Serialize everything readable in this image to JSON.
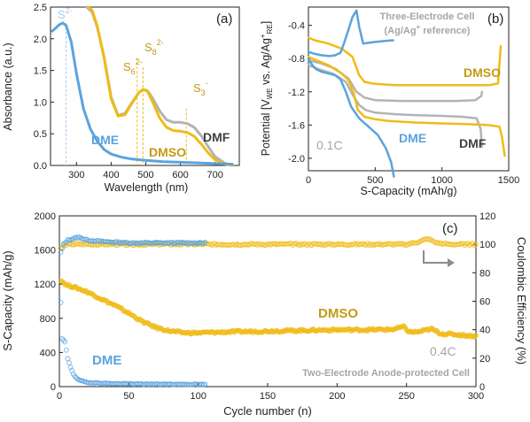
{
  "colors": {
    "dme": "#5aa3de",
    "dmso": "#f0bb17",
    "dmf": "#b3b3b3",
    "dmso_label": "#c49a12",
    "dmf_label": "#404040",
    "ce_arrow": "#8c8c8c",
    "note": "#a6a6a6"
  },
  "chart_data": [
    {
      "panel": "(a)",
      "type": "line",
      "xlabel": "Wavelength (nm)",
      "ylabel": "Absorbance (a.u.)",
      "xlim": [
        225,
        770
      ],
      "ylim": [
        0,
        2.5
      ],
      "xticks": [
        "300",
        "400",
        "500",
        "600",
        "700"
      ],
      "yticks": [
        "0.0",
        "0.5",
        "1.0",
        "1.5",
        "2.0",
        "2.5"
      ],
      "labels": {
        "dme": "DME",
        "dmso": "DMSO",
        "dmf": "DMF"
      },
      "species": [
        {
          "base": "S",
          "sup": "2-",
          "sub": "",
          "x": 270
        },
        {
          "base": "S",
          "sup": "2-",
          "sub": "6",
          "x": 475
        },
        {
          "base": "S",
          "sup": "2-",
          "sub": "8",
          "x": 492
        },
        {
          "base": "S",
          "sup": "-",
          "sub": "3",
          "x": 617
        }
      ],
      "series": [
        {
          "name": "DME",
          "x": [
            230,
            250,
            260,
            270,
            285,
            300,
            320,
            340,
            360,
            380,
            400,
            430,
            460,
            500,
            550,
            600,
            650,
            700,
            750
          ],
          "y": [
            2.12,
            2.22,
            2.25,
            2.21,
            1.95,
            1.45,
            0.9,
            0.58,
            0.38,
            0.25,
            0.18,
            0.13,
            0.1,
            0.08,
            0.06,
            0.05,
            0.04,
            0.03,
            0.02
          ]
        },
        {
          "name": "DMSO",
          "x": [
            335,
            345,
            360,
            380,
            400,
            420,
            440,
            460,
            480,
            492,
            505,
            520,
            540,
            560,
            580,
            600,
            620,
            640,
            660,
            680,
            700,
            730,
            750
          ],
          "y": [
            2.5,
            2.45,
            2.2,
            1.68,
            1.05,
            0.78,
            0.8,
            0.98,
            1.15,
            1.2,
            1.17,
            1.0,
            0.75,
            0.6,
            0.55,
            0.54,
            0.52,
            0.46,
            0.34,
            0.2,
            0.09,
            0.02,
            0.0
          ]
        },
        {
          "name": "DMF",
          "x": [
            330,
            345,
            360,
            380,
            400,
            420,
            440,
            460,
            480,
            492,
            505,
            520,
            540,
            560,
            580,
            600,
            620,
            640,
            660,
            680,
            700,
            730,
            750
          ],
          "y": [
            2.5,
            2.42,
            2.18,
            1.7,
            1.08,
            0.79,
            0.82,
            0.99,
            1.15,
            1.2,
            1.18,
            1.06,
            0.86,
            0.72,
            0.68,
            0.68,
            0.66,
            0.6,
            0.47,
            0.3,
            0.14,
            0.03,
            0.0
          ]
        }
      ]
    },
    {
      "panel": "(b)",
      "type": "line",
      "xlabel": "S-Capacity (mAh/g)",
      "ylabel_parts": [
        "Potential [V",
        "WE",
        " vs. Ag/Ag",
        "+",
        "RE",
        "]"
      ],
      "xlim": [
        0,
        1500
      ],
      "ylim": [
        -2.15,
        -0.18
      ],
      "xticks": [
        "0",
        "500",
        "1000",
        "1500"
      ],
      "yticks": [
        "-2.0",
        "-1.6",
        "-1.2",
        "-0.8",
        "-0.4"
      ],
      "note_line1": "Three-Electrode Cell",
      "note_line2": "(Ag/Ag",
      "note_sup": "+",
      "note_line2_end": " reference)",
      "rate": "0.1C",
      "labels": {
        "dme": "DME",
        "dmso": "DMSO",
        "dmf": "DMF"
      },
      "series": [
        {
          "name": "DME discharge",
          "x": [
            0,
            30,
            60,
            100,
            150,
            200,
            240,
            280,
            320,
            380,
            450,
            520,
            580,
            620,
            640
          ],
          "y": [
            -0.8,
            -0.88,
            -0.93,
            -0.96,
            -0.98,
            -1.0,
            -1.05,
            -1.2,
            -1.38,
            -1.52,
            -1.62,
            -1.72,
            -1.88,
            -2.05,
            -2.22
          ]
        },
        {
          "name": "DME charge",
          "x": [
            0,
            40,
            100,
            160,
            200,
            240,
            270,
            300,
            330,
            360,
            380,
            410,
            450,
            500,
            560,
            620,
            635
          ],
          "y": [
            -0.72,
            -0.74,
            -0.76,
            -0.77,
            -0.76,
            -0.73,
            -0.6,
            -0.45,
            -0.3,
            -0.22,
            -0.42,
            -0.62,
            -0.61,
            -0.6,
            -0.59,
            -0.58,
            -0.58
          ]
        },
        {
          "name": "DMSO discharge",
          "x": [
            0,
            60,
            150,
            250,
            300,
            340,
            370,
            420,
            500,
            600,
            800,
            1000,
            1200,
            1350,
            1430,
            1450,
            1470
          ],
          "y": [
            -0.78,
            -0.82,
            -0.88,
            -0.98,
            -1.06,
            -1.22,
            -1.42,
            -1.5,
            -1.53,
            -1.55,
            -1.57,
            -1.58,
            -1.59,
            -1.6,
            -1.62,
            -1.75,
            -1.97
          ]
        },
        {
          "name": "DMSO charge",
          "x": [
            0,
            50,
            150,
            250,
            330,
            380,
            420,
            480,
            550,
            650,
            800,
            1000,
            1200,
            1350,
            1420,
            1440
          ],
          "y": [
            -0.55,
            -0.58,
            -0.62,
            -0.68,
            -0.78,
            -1.0,
            -1.08,
            -1.1,
            -1.11,
            -1.12,
            -1.12,
            -1.12,
            -1.12,
            -1.12,
            -1.1,
            -0.65
          ]
        },
        {
          "name": "DMF discharge",
          "x": [
            0,
            80,
            180,
            280,
            340,
            380,
            430,
            500,
            650,
            800,
            1000,
            1150,
            1260,
            1290,
            1300
          ],
          "y": [
            -0.88,
            -0.93,
            -0.98,
            -1.08,
            -1.26,
            -1.36,
            -1.42,
            -1.45,
            -1.47,
            -1.48,
            -1.49,
            -1.5,
            -1.52,
            -1.65,
            -1.86
          ]
        },
        {
          "name": "DMF charge",
          "x": [
            0,
            100,
            200,
            300,
            360,
            420,
            500,
            700,
            900,
            1100,
            1250,
            1295,
            1300
          ],
          "y": [
            -0.82,
            -0.86,
            -0.92,
            -1.04,
            -1.2,
            -1.27,
            -1.3,
            -1.31,
            -1.31,
            -1.31,
            -1.3,
            -1.25,
            -1.2
          ]
        }
      ]
    },
    {
      "panel": "(c)",
      "type": "scatter",
      "xlabel": "Cycle number (n)",
      "ylabel": "S-Capacity (mAh/g)",
      "y2label": "Coulombic Efficiency (%)",
      "xlim": [
        0,
        300
      ],
      "ylim": [
        0,
        2000
      ],
      "y2lim": [
        0,
        120
      ],
      "xticks": [
        "0",
        "50",
        "100",
        "150",
        "200",
        "250",
        "300"
      ],
      "yticks": [
        "0",
        "400",
        "800",
        "1200",
        "1600",
        "2000"
      ],
      "y2ticks": [
        "0",
        "20",
        "40",
        "60",
        "80",
        "100",
        "120"
      ],
      "rate": "0.4C",
      "note": "Two-Electrode Anode-protected Cell",
      "labels": {
        "dme": "DME",
        "dmso": "DMSO"
      },
      "dmso_capacity": {
        "x": [
          1,
          5,
          10,
          20,
          30,
          40,
          50,
          60,
          70,
          80,
          90,
          100,
          120,
          150,
          180,
          200,
          220,
          240,
          248,
          252,
          258,
          268,
          275,
          285,
          300
        ],
        "y": [
          1250,
          1190,
          1170,
          1110,
          1030,
          950,
          860,
          760,
          690,
          650,
          630,
          630,
          640,
          650,
          660,
          665,
          665,
          670,
          700,
          640,
          640,
          675,
          620,
          610,
          590
        ]
      },
      "dme_capacity": {
        "x": [
          1,
          2,
          4,
          6,
          8,
          10,
          12,
          15,
          20,
          30,
          40,
          50,
          60,
          80,
          100,
          105
        ],
        "y": [
          980,
          560,
          520,
          330,
          230,
          150,
          100,
          70,
          50,
          40,
          35,
          32,
          30,
          28,
          26,
          25
        ]
      },
      "dmso_ce": {
        "x": [
          1,
          3,
          6,
          10,
          20,
          50,
          100,
          150,
          200,
          250,
          260,
          265,
          272,
          280,
          300
        ],
        "y": [
          97,
          99,
          100,
          100,
          100,
          100,
          100,
          100,
          100,
          100,
          102,
          104,
          101,
          100,
          100
        ]
      },
      "dme_ce": {
        "x": [
          1,
          3,
          6,
          10,
          14,
          20,
          30,
          50,
          80,
          105
        ],
        "y": [
          94,
          100,
          103,
          104,
          105,
          103,
          102,
          101,
          101,
          101
        ]
      }
    }
  ]
}
